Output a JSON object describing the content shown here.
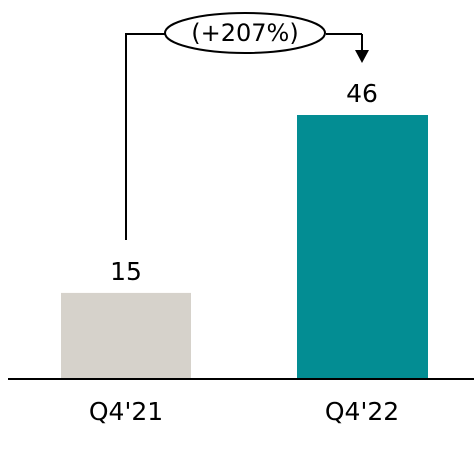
{
  "chart_data": {
    "type": "bar",
    "categories": [
      "Q4'21",
      "Q4'22"
    ],
    "values": [
      15,
      46
    ],
    "data_labels": [
      "15",
      "46"
    ],
    "annotation": "(+207%)",
    "colors": [
      "#d6d2cb",
      "#038d93"
    ],
    "axis_color": "#000000"
  }
}
